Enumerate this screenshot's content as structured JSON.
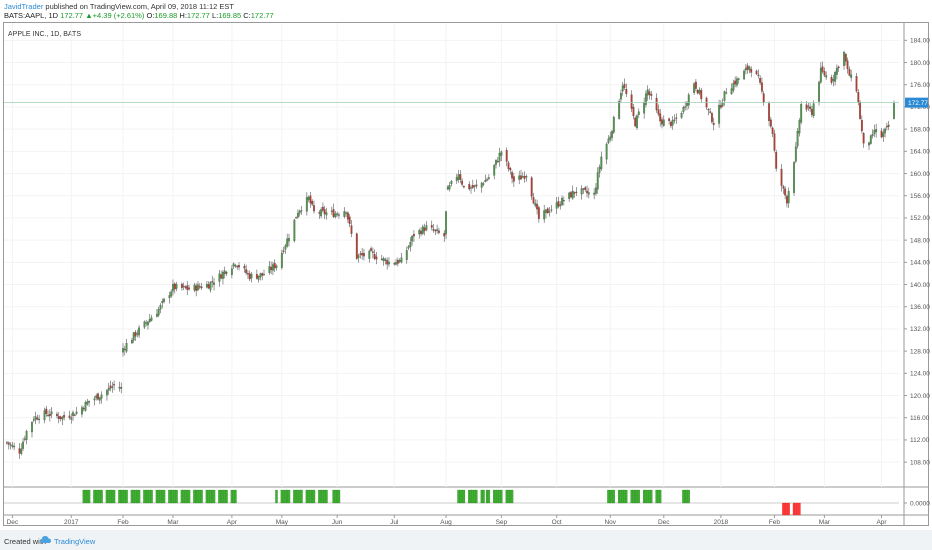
{
  "header": {
    "author": "JavidTrader",
    "published": " published on TradingView.com, April 09, 2018 11:12 EST",
    "symbol": "BATS:AAPL, 1D",
    "last": "172.77",
    "change": "+4.39 (+2.61%)",
    "o_label": "O:",
    "o_value": "169.88",
    "h_label": "H:",
    "h_value": "172.77",
    "l_label": "L:",
    "l_value": "169.85",
    "c_label": "C:",
    "c_value": "172.77"
  },
  "footer": {
    "created": "Created with",
    "brand": "TradingView"
  },
  "colors": {
    "up": "#4c9a48",
    "down": "#c0392b",
    "hist_up": "#3fae32",
    "hist_down": "#ff3b3b",
    "last_label_bg": "#2a8ad4"
  },
  "chart_data": {
    "type": "candlestick",
    "title": "APPLE INC., 1D, BATS",
    "y_ticks": [
      "108.00",
      "112.00",
      "116.00",
      "120.00",
      "124.00",
      "128.00",
      "132.00",
      "136.00",
      "140.00",
      "144.00",
      "148.00",
      "152.00",
      "156.00",
      "160.00",
      "164.00",
      "168.00",
      "172.00",
      "176.00",
      "180.00",
      "184.00"
    ],
    "y_range": [
      104.6,
      186.4
    ],
    "last_price": "172.77",
    "x_ticks": [
      {
        "label": "Dec",
        "date": "2016-12-01"
      },
      {
        "label": "2017",
        "date": "2017-01-03"
      },
      {
        "label": "Feb",
        "date": "2017-02-01"
      },
      {
        "label": "Mar",
        "date": "2017-03-01"
      },
      {
        "label": "Apr",
        "date": "2017-04-03"
      },
      {
        "label": "May",
        "date": "2017-05-01"
      },
      {
        "label": "Jun",
        "date": "2017-06-01"
      },
      {
        "label": "Jul",
        "date": "2017-07-03"
      },
      {
        "label": "Aug",
        "date": "2017-08-01"
      },
      {
        "label": "Sep",
        "date": "2017-09-01"
      },
      {
        "label": "Oct",
        "date": "2017-10-02"
      },
      {
        "label": "Nov",
        "date": "2017-11-01"
      },
      {
        "label": "Dec",
        "date": "2017-12-01"
      },
      {
        "label": "2018",
        "date": "2018-01-02"
      },
      {
        "label": "Feb",
        "date": "2018-02-01"
      },
      {
        "label": "Mar",
        "date": "2018-03-01"
      },
      {
        "label": "Apr",
        "date": "2018-04-02"
      }
    ],
    "start_date": "2016-11-28",
    "end_date": "2018-04-09",
    "close_anchors": [
      [
        "2016-11-28",
        111.5
      ],
      [
        "2016-12-05",
        110.0
      ],
      [
        "2016-12-09",
        113.5
      ],
      [
        "2016-12-13",
        116.0
      ],
      [
        "2016-12-20",
        116.8
      ],
      [
        "2016-12-29",
        116.0
      ],
      [
        "2017-01-06",
        117.0
      ],
      [
        "2017-01-13",
        119.0
      ],
      [
        "2017-01-20",
        120.2
      ],
      [
        "2017-01-27",
        121.8
      ],
      [
        "2017-01-31",
        121.3
      ],
      [
        "2017-02-01",
        128.5
      ],
      [
        "2017-02-10",
        131.8
      ],
      [
        "2017-02-21",
        135.5
      ],
      [
        "2017-03-01",
        139.5
      ],
      [
        "2017-03-10",
        139.2
      ],
      [
        "2017-03-21",
        140.0
      ],
      [
        "2017-03-27",
        141.5
      ],
      [
        "2017-04-05",
        144.0
      ],
      [
        "2017-04-13",
        141.5
      ],
      [
        "2017-04-20",
        141.7
      ],
      [
        "2017-04-28",
        143.6
      ],
      [
        "2017-05-05",
        148.8
      ],
      [
        "2017-05-10",
        153.2
      ],
      [
        "2017-05-16",
        155.5
      ],
      [
        "2017-05-19",
        153.0
      ],
      [
        "2017-05-31",
        152.8
      ],
      [
        "2017-06-06",
        153.5
      ],
      [
        "2017-06-09",
        149.0
      ],
      [
        "2017-06-12",
        145.0
      ],
      [
        "2017-06-20",
        145.5
      ],
      [
        "2017-06-30",
        144.0
      ],
      [
        "2017-07-07",
        144.2
      ],
      [
        "2017-07-14",
        149.0
      ],
      [
        "2017-07-21",
        150.3
      ],
      [
        "2017-07-31",
        148.7
      ],
      [
        "2017-08-02",
        157.0
      ],
      [
        "2017-08-08",
        160.1
      ],
      [
        "2017-08-11",
        157.5
      ],
      [
        "2017-08-18",
        157.5
      ],
      [
        "2017-08-25",
        159.3
      ],
      [
        "2017-09-01",
        164.0
      ],
      [
        "2017-09-08",
        158.6
      ],
      [
        "2017-09-15",
        159.9
      ],
      [
        "2017-09-22",
        151.8
      ],
      [
        "2017-09-26",
        153.0
      ],
      [
        "2017-10-06",
        155.3
      ],
      [
        "2017-10-13",
        156.9
      ],
      [
        "2017-10-23",
        156.2
      ],
      [
        "2017-10-27",
        163.0
      ],
      [
        "2017-11-01",
        166.9
      ],
      [
        "2017-11-08",
        176.2
      ],
      [
        "2017-11-15",
        169.1
      ],
      [
        "2017-11-22",
        175.0
      ],
      [
        "2017-11-29",
        169.5
      ],
      [
        "2017-12-06",
        169.0
      ],
      [
        "2017-12-12",
        171.7
      ],
      [
        "2017-12-18",
        176.4
      ],
      [
        "2017-12-29",
        169.2
      ],
      [
        "2018-01-05",
        175.0
      ],
      [
        "2018-01-12",
        177.1
      ],
      [
        "2018-01-18",
        179.3
      ],
      [
        "2018-01-23",
        177.0
      ],
      [
        "2018-01-31",
        167.4
      ],
      [
        "2018-02-02",
        160.5
      ],
      [
        "2018-02-08",
        155.2
      ],
      [
        "2018-02-13",
        164.3
      ],
      [
        "2018-02-16",
        172.4
      ],
      [
        "2018-02-22",
        171.1
      ],
      [
        "2018-02-27",
        178.4
      ],
      [
        "2018-03-05",
        176.8
      ],
      [
        "2018-03-12",
        181.7
      ],
      [
        "2018-03-14",
        178.4
      ],
      [
        "2018-03-19",
        175.3
      ],
      [
        "2018-03-23",
        164.9
      ],
      [
        "2018-03-28",
        166.5
      ],
      [
        "2018-03-29",
        167.8
      ],
      [
        "2018-04-02",
        166.7
      ],
      [
        "2018-04-06",
        168.4
      ],
      [
        "2018-04-09",
        172.77
      ]
    ],
    "indicator": {
      "zero_label": "0.0000",
      "positive_ranges": [
        [
          "2017-01-10",
          "2017-04-05"
        ],
        [
          "2017-04-28",
          "2017-05-26"
        ],
        [
          "2017-05-30",
          "2017-06-02"
        ],
        [
          "2017-08-08",
          "2017-08-22"
        ],
        [
          "2017-08-24",
          "2017-09-07"
        ],
        [
          "2017-10-31",
          "2017-11-29"
        ],
        [
          "2017-12-12",
          "2017-12-15"
        ]
      ],
      "negative_ranges": [
        [
          "2018-02-06",
          "2018-02-15"
        ]
      ]
    }
  }
}
